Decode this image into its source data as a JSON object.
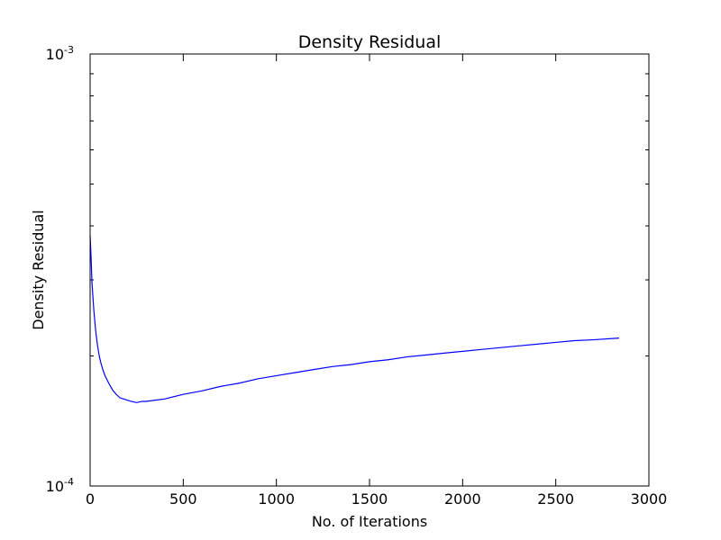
{
  "chart_data": {
    "type": "line",
    "title": "Density Residual",
    "xlabel": "No. of Iterations",
    "ylabel": "Density Residual",
    "xlim": [
      0,
      3000
    ],
    "ylim": [
      0.0001,
      0.001
    ],
    "yscale": "log",
    "xticks": [
      0,
      500,
      1000,
      1500,
      2000,
      2500,
      3000
    ],
    "xtick_labels": [
      "0",
      "500",
      "1000",
      "1500",
      "2000",
      "2500",
      "3000"
    ],
    "yticks": [
      {
        "value": 0.0001,
        "base": "10",
        "exp": "-4"
      },
      {
        "value": 0.001,
        "base": "10",
        "exp": "-3"
      }
    ],
    "grid": false,
    "line_color": "#0000ff",
    "series": [
      {
        "x": [
          0,
          5,
          10,
          20,
          30,
          40,
          50,
          60,
          70,
          80,
          100,
          120,
          140,
          160,
          180,
          200,
          220,
          250,
          280,
          300,
          350,
          400,
          450,
          500,
          600,
          700,
          800,
          900,
          1000,
          1100,
          1200,
          1300,
          1400,
          1500,
          1600,
          1700,
          1800,
          1900,
          2000,
          2100,
          2200,
          2300,
          2400,
          2500,
          2600,
          2700,
          2840
        ],
        "y": [
          0.00038,
          0.00034,
          0.000295,
          0.000255,
          0.000228,
          0.000211,
          0.000199,
          0.000191,
          0.000185,
          0.00018,
          0.000173,
          0.000167,
          0.000163,
          0.00016,
          0.000159,
          0.000158,
          0.000157,
          0.000156,
          0.000157,
          0.000157,
          0.000158,
          0.000159,
          0.000161,
          0.000163,
          0.000166,
          0.00017,
          0.000173,
          0.000177,
          0.00018,
          0.000183,
          0.000186,
          0.000189,
          0.000191,
          0.000194,
          0.000196,
          0.000199,
          0.000201,
          0.000203,
          0.000205,
          0.000207,
          0.000209,
          0.000211,
          0.000213,
          0.000215,
          0.000217,
          0.000218,
          0.00022
        ]
      }
    ]
  }
}
